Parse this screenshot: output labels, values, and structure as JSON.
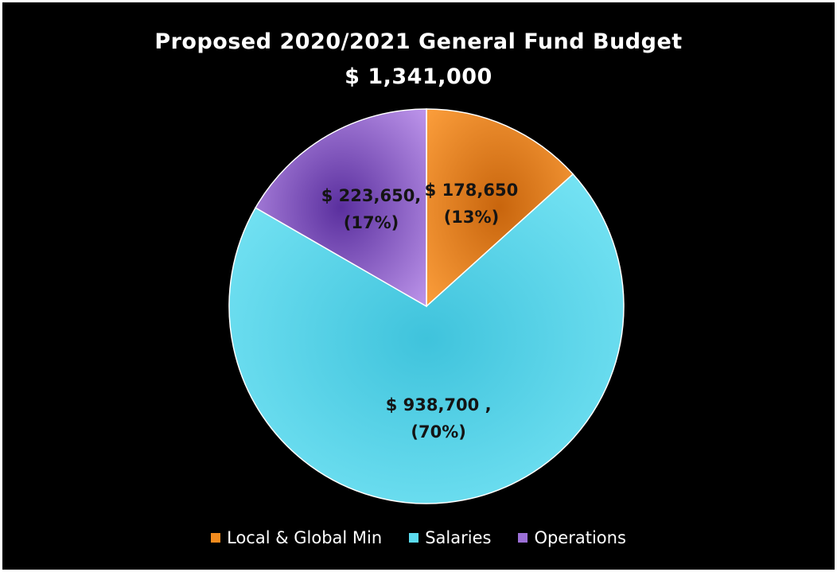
{
  "chart_data": {
    "type": "pie",
    "title": "Proposed 2020/2021 General Fund Budget",
    "subtitle": "$ 1,341,000",
    "slices": [
      {
        "name": "Local & Global Min",
        "value": 178650,
        "percent": 13,
        "label_value": "$ 178,650",
        "label_percent": "(13%)",
        "color": "#f28b1e"
      },
      {
        "name": "Salaries",
        "value": 938700,
        "percent": 70,
        "label_value": "$ 938,700 ,",
        "label_percent": "(70%)",
        "color": "#5bdcf0"
      },
      {
        "name": "Operations",
        "value": 223650,
        "percent": 17,
        "label_value": "$ 223,650,",
        "label_percent": "(17%)",
        "color": "#9b6fd6"
      }
    ],
    "legend_position": "bottom",
    "background": "#000000"
  }
}
